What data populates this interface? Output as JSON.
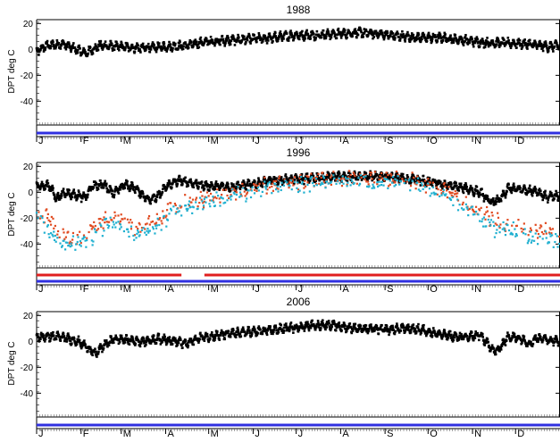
{
  "chart_data": [
    {
      "type": "scatter",
      "title": "1988",
      "ylabel": "DPT deg C",
      "ylim": [
        -57,
        23
      ],
      "yticks": [
        20,
        0,
        -20,
        -40
      ],
      "month_labels": [
        "J",
        "F",
        "M",
        "A",
        "M",
        "J",
        "J",
        "A",
        "S",
        "O",
        "N",
        "D"
      ],
      "series": [
        {
          "color": "#000000",
          "description": "dew point",
          "anchors": [
            [
              1,
              -2
            ],
            [
              8,
              3
            ],
            [
              20,
              4
            ],
            [
              35,
              -3
            ],
            [
              45,
              3
            ],
            [
              60,
              2
            ],
            [
              75,
              1
            ],
            [
              90,
              2
            ],
            [
              105,
              3
            ],
            [
              120,
              6
            ],
            [
              135,
              7
            ],
            [
              150,
              8
            ],
            [
              165,
              9
            ],
            [
              180,
              11
            ],
            [
              195,
              11
            ],
            [
              210,
              12
            ],
            [
              225,
              13
            ],
            [
              240,
              12
            ],
            [
              255,
              10
            ],
            [
              270,
              9
            ],
            [
              285,
              9
            ],
            [
              300,
              7
            ],
            [
              315,
              5
            ],
            [
              330,
              5
            ],
            [
              345,
              4
            ],
            [
              358,
              2
            ],
            [
              365,
              3
            ]
          ]
        }
      ],
      "bars": [
        {
          "color": "#3030e0",
          "segments": [
            [
              1,
              366
            ]
          ]
        }
      ]
    },
    {
      "type": "scatter",
      "title": "1996",
      "ylabel": "DPT deg C",
      "ylim": [
        -57,
        23
      ],
      "yticks": [
        20,
        0,
        -20,
        -40
      ],
      "month_labels": [
        "J",
        "F",
        "M",
        "A",
        "M",
        "J",
        "J",
        "A",
        "S",
        "O",
        "N",
        "D"
      ],
      "series": [
        {
          "color": "#000000",
          "description": "dew point",
          "anchors": [
            [
              1,
              5
            ],
            [
              10,
              5
            ],
            [
              15,
              -5
            ],
            [
              20,
              0
            ],
            [
              28,
              -2
            ],
            [
              35,
              -4
            ],
            [
              40,
              5
            ],
            [
              48,
              6
            ],
            [
              55,
              -1
            ],
            [
              62,
              6
            ],
            [
              70,
              3
            ],
            [
              78,
              -5
            ],
            [
              85,
              -4
            ],
            [
              92,
              5
            ],
            [
              100,
              9
            ],
            [
              110,
              7
            ],
            [
              120,
              5
            ],
            [
              135,
              4
            ],
            [
              150,
              6
            ],
            [
              165,
              9
            ],
            [
              180,
              10
            ],
            [
              195,
              11
            ],
            [
              210,
              12
            ],
            [
              225,
              12
            ],
            [
              240,
              12
            ],
            [
              255,
              11
            ],
            [
              270,
              9
            ],
            [
              285,
              6
            ],
            [
              300,
              3
            ],
            [
              310,
              0
            ],
            [
              318,
              -8
            ],
            [
              325,
              -5
            ],
            [
              330,
              3
            ],
            [
              340,
              2
            ],
            [
              350,
              1
            ],
            [
              357,
              -4
            ],
            [
              365,
              -3
            ]
          ]
        },
        {
          "color": "#e04a20",
          "description": "low values 1",
          "anchors": [
            [
              1,
              -15
            ],
            [
              10,
              -20
            ],
            [
              18,
              -35
            ],
            [
              28,
              -35
            ],
            [
              38,
              -30
            ],
            [
              50,
              -20
            ],
            [
              60,
              -20
            ],
            [
              70,
              -28
            ],
            [
              80,
              -22
            ],
            [
              88,
              -20
            ],
            [
              95,
              -10
            ],
            [
              120,
              -5
            ],
            [
              160,
              5
            ],
            [
              200,
              10
            ],
            [
              260,
              10
            ],
            [
              290,
              0
            ],
            [
              305,
              -10
            ],
            [
              320,
              -22
            ],
            [
              335,
              -25
            ],
            [
              345,
              -30
            ],
            [
              355,
              -28
            ],
            [
              365,
              -30
            ]
          ]
        },
        {
          "color": "#20b0d0",
          "description": "low values 2",
          "anchors": [
            [
              1,
              -20
            ],
            [
              10,
              -30
            ],
            [
              18,
              -40
            ],
            [
              28,
              -40
            ],
            [
              38,
              -38
            ],
            [
              50,
              -25
            ],
            [
              60,
              -25
            ],
            [
              70,
              -32
            ],
            [
              80,
              -28
            ],
            [
              88,
              -25
            ],
            [
              95,
              -15
            ],
            [
              120,
              -8
            ],
            [
              160,
              3
            ],
            [
              200,
              8
            ],
            [
              260,
              8
            ],
            [
              290,
              -5
            ],
            [
              305,
              -15
            ],
            [
              320,
              -28
            ],
            [
              335,
              -30
            ],
            [
              345,
              -35
            ],
            [
              355,
              -35
            ],
            [
              365,
              -38
            ]
          ]
        }
      ],
      "bars": [
        {
          "color": "#e02020",
          "segments": [
            [
              1,
              102
            ],
            [
              118,
              366
            ]
          ]
        },
        {
          "color": "#3030e0",
          "segments": [
            [
              1,
              366
            ]
          ]
        }
      ]
    },
    {
      "type": "scatter",
      "title": "2006",
      "ylabel": "DPT deg C",
      "ylim": [
        -57,
        23
      ],
      "yticks": [
        20,
        0,
        -20,
        -40
      ],
      "month_labels": [
        "J",
        "F",
        "M",
        "A",
        "M",
        "J",
        "J",
        "A",
        "S",
        "O",
        "N",
        "D"
      ],
      "series": [
        {
          "color": "#000000",
          "description": "dew point",
          "anchors": [
            [
              1,
              3
            ],
            [
              10,
              4
            ],
            [
              20,
              3
            ],
            [
              30,
              0
            ],
            [
              37,
              -5
            ],
            [
              42,
              -10
            ],
            [
              48,
              -3
            ],
            [
              55,
              2
            ],
            [
              65,
              1
            ],
            [
              75,
              0
            ],
            [
              85,
              2
            ],
            [
              95,
              1
            ],
            [
              105,
              -2
            ],
            [
              115,
              3
            ],
            [
              130,
              5
            ],
            [
              145,
              7
            ],
            [
              160,
              8
            ],
            [
              175,
              10
            ],
            [
              190,
              12
            ],
            [
              205,
              13
            ],
            [
              215,
              11
            ],
            [
              230,
              10
            ],
            [
              245,
              9
            ],
            [
              260,
              10
            ],
            [
              270,
              9
            ],
            [
              280,
              6
            ],
            [
              290,
              4
            ],
            [
              300,
              3
            ],
            [
              310,
              5
            ],
            [
              318,
              -5
            ],
            [
              322,
              -8
            ],
            [
              330,
              4
            ],
            [
              340,
              2
            ],
            [
              345,
              -2
            ],
            [
              350,
              3
            ],
            [
              360,
              1
            ],
            [
              365,
              0
            ]
          ]
        }
      ],
      "bars": [
        {
          "color": "#3030e0",
          "segments": [
            [
              1,
              366
            ]
          ]
        }
      ]
    }
  ]
}
